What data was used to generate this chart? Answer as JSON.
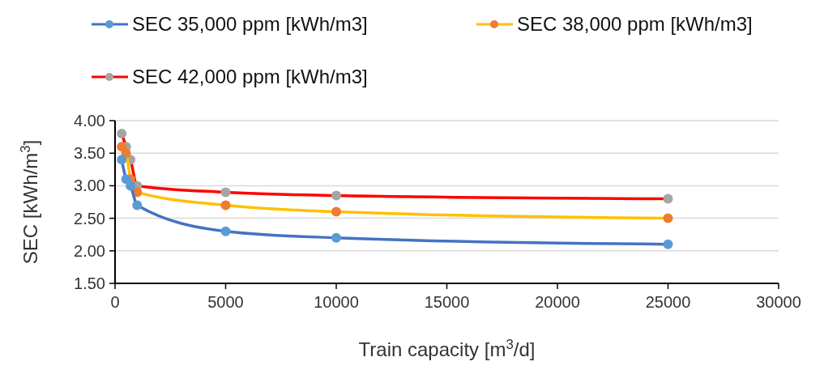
{
  "chart_data": {
    "type": "line",
    "xlabel": "Train capacity [m$^{3}$/d]",
    "ylabel": "SEC [kWh/m$^{3}$]",
    "xlim": [
      0,
      30000
    ],
    "xticks": [
      0,
      5000,
      10000,
      15000,
      20000,
      25000,
      30000
    ],
    "ylim": [
      1.5,
      4
    ],
    "yticks": [
      {
        "value": 1.5,
        "label": "1.50"
      },
      {
        "value": 2,
        "label": "2.00"
      },
      {
        "value": 2.5,
        "label": "2.50"
      },
      {
        "value": 3,
        "label": "3.00"
      },
      {
        "value": 3.5,
        "label": "3.50"
      },
      {
        "value": 4,
        "label": "4.00"
      }
    ],
    "grid": "y",
    "legend": "top",
    "marker": "circle",
    "line_style": "solid",
    "series": [
      {
        "name": "SEC 35,000 ppm [kWh/m3]",
        "color": "#4472c4",
        "colors": [
          "#5b9bd5",
          "#5b9bd5",
          "#5b9bd5",
          "#5b9bd5",
          "#5b9bd5",
          "#5b9bd5",
          "#5b9bd5"
        ],
        "x": [
          300,
          500,
          700,
          1000,
          5000,
          10000,
          25000
        ],
        "values": [
          3.4,
          3.1,
          3.0,
          2.7,
          2.3,
          2.2,
          2.1
        ]
      },
      {
        "name": "SEC 38,000 ppm [kWh/m3]",
        "color": "#ffc000",
        "colors": [
          "#ed7d31",
          "#ed7d31",
          "#ed7d31",
          "#ed7d31",
          "#ed7d31",
          "#ed7d31",
          "#ed7d31"
        ],
        "x": [
          300,
          500,
          700,
          1000,
          5000,
          10000,
          25000
        ],
        "values": [
          3.6,
          3.5,
          3.1,
          2.9,
          2.7,
          2.6,
          2.5
        ]
      },
      {
        "name": "SEC 42,000 ppm [kWh/m3]",
        "color": "#ff0000",
        "colors": [
          "#a5a5a5",
          "#a5a5a5",
          "#a5a5a5",
          "#a5a5a5",
          "#a5a5a5",
          "#a5a5a5",
          "#a5a5a5"
        ],
        "x": [
          300,
          500,
          700,
          1000,
          5000,
          10000,
          25000
        ],
        "values": [
          3.8,
          3.6,
          3.4,
          3.0,
          2.9,
          2.85,
          2.8
        ]
      }
    ]
  }
}
